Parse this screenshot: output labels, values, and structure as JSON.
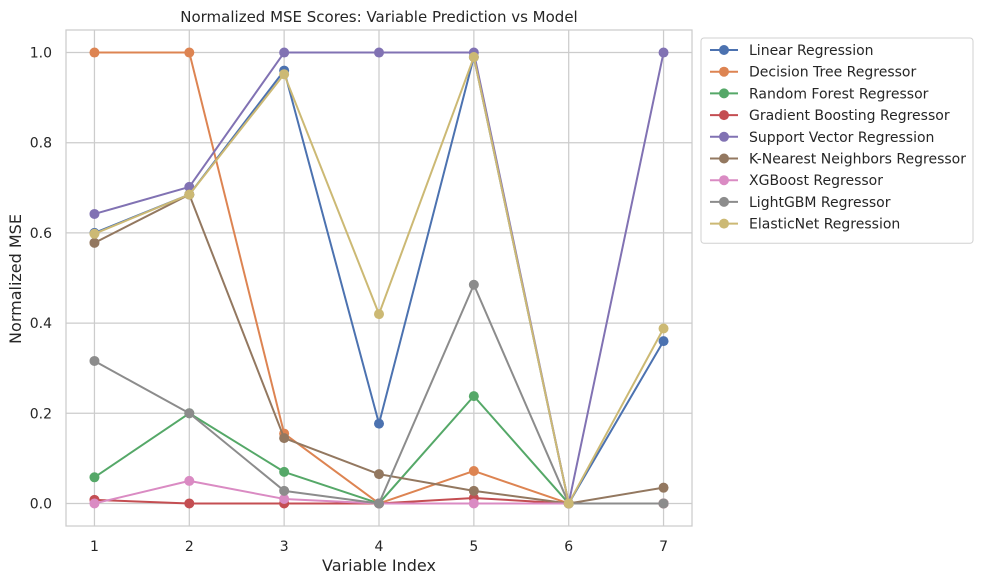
{
  "chart_data": {
    "type": "line",
    "title": "Normalized MSE Scores: Variable Prediction vs Model",
    "xlabel": "Variable Index",
    "ylabel": "Normalized MSE",
    "x": [
      1,
      2,
      3,
      4,
      5,
      6,
      7
    ],
    "x_ticks": [
      "1",
      "2",
      "3",
      "4",
      "5",
      "6",
      "7"
    ],
    "y_ticks": [
      "0.0",
      "0.2",
      "0.4",
      "0.6",
      "0.8",
      "1.0"
    ],
    "xlim": [
      0.7,
      7.3
    ],
    "ylim": [
      -0.05,
      1.05
    ],
    "grid": true,
    "legend_position": "outside-top-right",
    "marker": "circle",
    "series": [
      {
        "name": "Linear Regression",
        "color": "#4c72b0",
        "values": [
          0.6,
          0.685,
          0.96,
          0.177,
          0.99,
          0.0,
          0.36
        ]
      },
      {
        "name": "Decision Tree Regressor",
        "color": "#dd8452",
        "values": [
          1.0,
          1.0,
          0.155,
          0.0,
          0.072,
          0.0,
          0.0
        ]
      },
      {
        "name": "Random Forest Regressor",
        "color": "#55a868",
        "values": [
          0.058,
          0.2,
          0.07,
          0.0,
          0.238,
          0.0,
          0.0
        ]
      },
      {
        "name": "Gradient Boosting Regressor",
        "color": "#c44e52",
        "values": [
          0.008,
          0.0,
          0.0,
          0.0,
          0.012,
          0.0,
          0.0
        ]
      },
      {
        "name": "Support Vector Regression",
        "color": "#8172b3",
        "values": [
          0.642,
          0.702,
          1.0,
          1.0,
          1.0,
          0.0,
          1.0
        ]
      },
      {
        "name": "K-Nearest Neighbors Regressor",
        "color": "#937860",
        "values": [
          0.578,
          0.685,
          0.145,
          0.065,
          0.028,
          0.0,
          0.035
        ]
      },
      {
        "name": "XGBoost Regressor",
        "color": "#da8bc3",
        "values": [
          0.0,
          0.05,
          0.01,
          0.0,
          0.0,
          0.0,
          0.0
        ]
      },
      {
        "name": "LightGBM Regressor",
        "color": "#8c8c8c",
        "values": [
          0.316,
          0.2,
          0.028,
          0.0,
          0.485,
          0.0,
          0.0
        ]
      },
      {
        "name": "ElasticNet Regression",
        "color": "#ccb974",
        "values": [
          0.598,
          0.685,
          0.952,
          0.42,
          0.99,
          0.0,
          0.388
        ]
      }
    ]
  }
}
